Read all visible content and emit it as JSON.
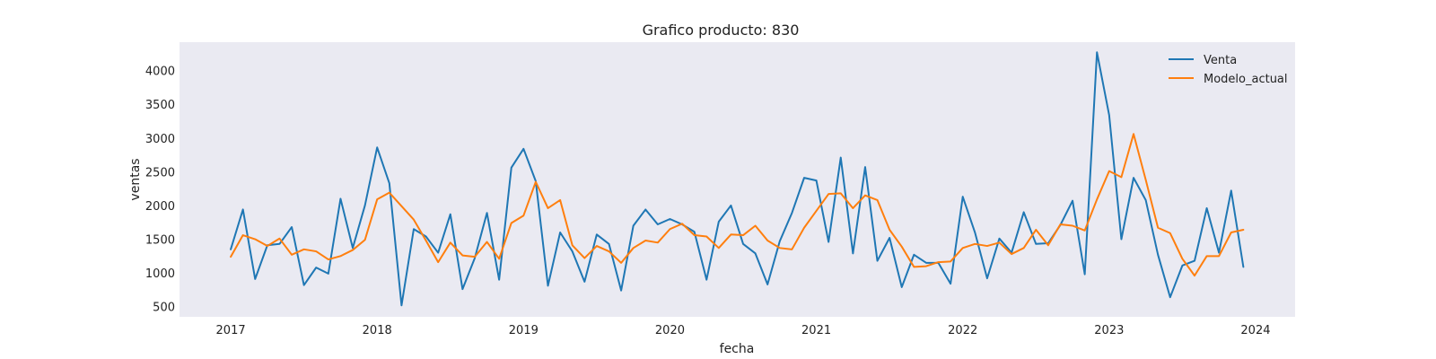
{
  "chart_data": {
    "type": "line",
    "title": "Grafico producto: 830",
    "xlabel": "fecha",
    "ylabel": "ventas",
    "xlim": [
      2016.65,
      2024.27
    ],
    "ylim": [
      350,
      4420
    ],
    "x_ticks": [
      "2017",
      "2018",
      "2019",
      "2020",
      "2021",
      "2022",
      "2023",
      "2024"
    ],
    "y_ticks": [
      "500",
      "1000",
      "1500",
      "2000",
      "2500",
      "3000",
      "3500",
      "4000"
    ],
    "grid": false,
    "legend_position": "upper right",
    "x_start": "2017-01",
    "x_step": "month",
    "series": [
      {
        "name": "Venta",
        "color": "#1f77b4",
        "values": [
          1350,
          1940,
          910,
          1410,
          1430,
          1680,
          820,
          1080,
          990,
          2100,
          1370,
          2000,
          2860,
          2330,
          520,
          1650,
          1540,
          1300,
          1870,
          760,
          1220,
          1890,
          900,
          2560,
          2840,
          2360,
          810,
          1600,
          1320,
          870,
          1570,
          1430,
          740,
          1700,
          1940,
          1720,
          1800,
          1720,
          1610,
          900,
          1760,
          2000,
          1430,
          1290,
          830,
          1470,
          1890,
          2410,
          2370,
          1460,
          2710,
          1290,
          2570,
          1180,
          1520,
          790,
          1270,
          1150,
          1150,
          840,
          2130,
          1600,
          920,
          1510,
          1300,
          1900,
          1430,
          1440,
          1710,
          2070,
          980,
          4270,
          3340,
          1500,
          2410,
          2080,
          1270,
          640,
          1110,
          1180,
          1960,
          1300,
          2220,
          1090
        ]
      },
      {
        "name": "Modelo_actual",
        "color": "#ff7f0e",
        "values": [
          1240,
          1560,
          1500,
          1400,
          1510,
          1270,
          1350,
          1320,
          1200,
          1250,
          1340,
          1490,
          2090,
          2190,
          1990,
          1790,
          1480,
          1160,
          1450,
          1260,
          1240,
          1460,
          1210,
          1740,
          1850,
          2350,
          1960,
          2080,
          1410,
          1220,
          1400,
          1320,
          1150,
          1370,
          1480,
          1450,
          1650,
          1730,
          1560,
          1540,
          1370,
          1570,
          1560,
          1700,
          1480,
          1370,
          1350,
          1670,
          1920,
          2170,
          2180,
          1960,
          2150,
          2080,
          1640,
          1390,
          1090,
          1100,
          1160,
          1170,
          1370,
          1430,
          1400,
          1450,
          1280,
          1370,
          1640,
          1410,
          1720,
          1700,
          1630,
          2090,
          2510,
          2420,
          3060,
          2380,
          1670,
          1590,
          1210,
          960,
          1250,
          1250,
          1600,
          1640
        ]
      }
    ]
  }
}
